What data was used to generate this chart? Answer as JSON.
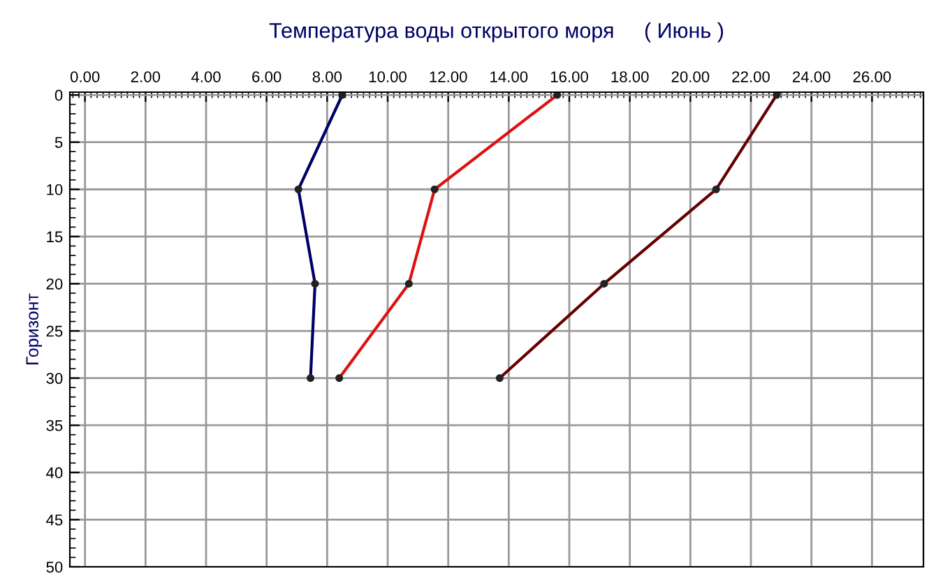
{
  "chart_data": {
    "type": "line",
    "title": "Температура воды открытого моря     ( Июнь )",
    "ylabel": "Горизонт",
    "series": [
      {
        "color": "#000066",
        "x": [
          8.5,
          7.05,
          7.6,
          7.45
        ],
        "values": [
          0,
          10,
          20,
          30
        ]
      },
      {
        "color": "#dd1111",
        "x": [
          15.6,
          11.55,
          10.7,
          8.4
        ],
        "values": [
          0,
          10,
          20,
          30
        ]
      },
      {
        "color": "#660000",
        "x": [
          22.85,
          20.85,
          17.15,
          13.7
        ],
        "values": [
          0,
          10,
          20,
          30
        ]
      }
    ],
    "xlim": [
      -0.5,
      27.7
    ],
    "xticks": [
      {
        "value": 0,
        "label": "0.00"
      },
      {
        "value": 2,
        "label": "2.00"
      },
      {
        "value": 4,
        "label": "4.00"
      },
      {
        "value": 6,
        "label": "6.00"
      },
      {
        "value": 8,
        "label": "8.00"
      },
      {
        "value": 10,
        "label": "10.00"
      },
      {
        "value": 12,
        "label": "12.00"
      },
      {
        "value": 14,
        "label": "14.00"
      },
      {
        "value": 16,
        "label": "16.00"
      },
      {
        "value": 18,
        "label": "18.00"
      },
      {
        "value": 20,
        "label": "20.00"
      },
      {
        "value": 22,
        "label": "22.00"
      },
      {
        "value": 24,
        "label": "24.00"
      },
      {
        "value": 26,
        "label": "26.00"
      }
    ],
    "ylim": [
      50,
      -0.3
    ],
    "yticks": [
      0,
      5,
      10,
      15,
      20,
      25,
      30,
      35,
      40,
      45,
      50
    ],
    "grid": true,
    "marker": "circle",
    "line_style": "solid",
    "legend": false
  }
}
